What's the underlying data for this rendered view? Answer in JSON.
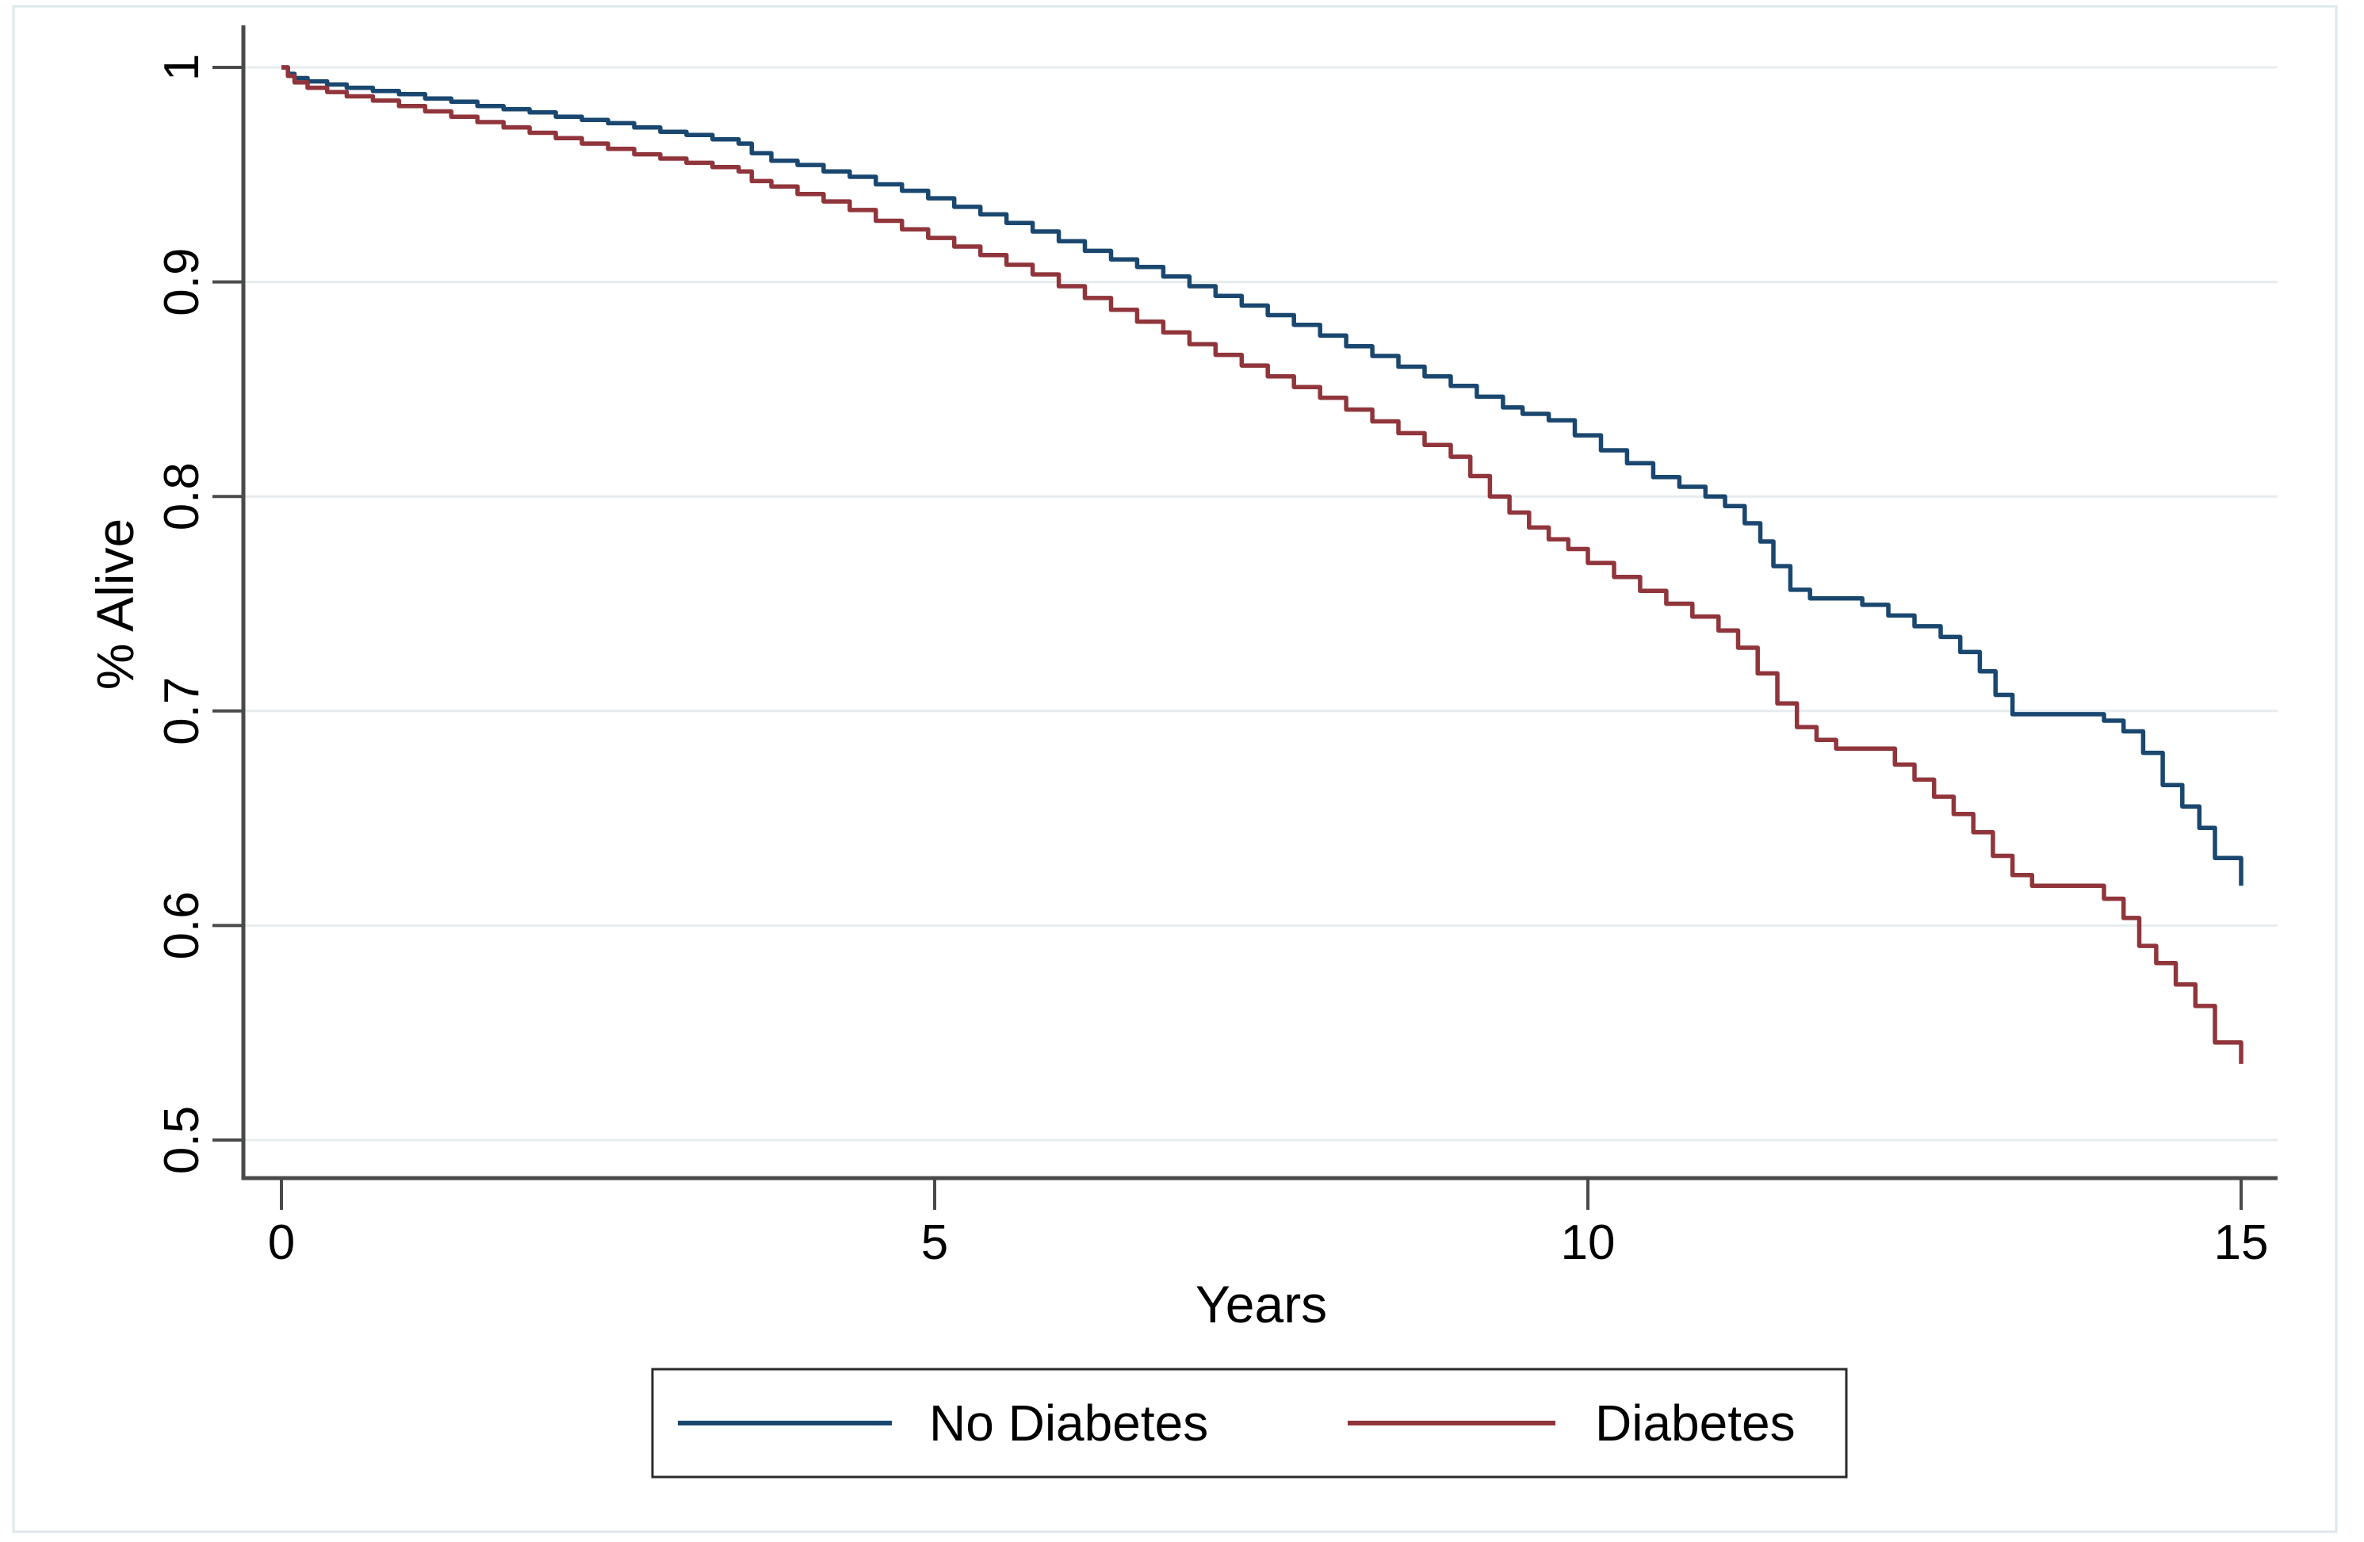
{
  "figure": {
    "background_color": "#ffffff",
    "outer_frame_color": "#dce8eb"
  },
  "legend": {
    "border_color": "#2b2b2b",
    "background_color": "#ffffff",
    "items": [
      {
        "label": "No Diabetes",
        "color": "#1a476f"
      },
      {
        "label": "Diabetes",
        "color": "#90353b"
      }
    ]
  },
  "chart_data": {
    "type": "line",
    "subtype": "kaplan-meier-survival-step",
    "title": "",
    "xlabel": "Years",
    "ylabel": "% Alive",
    "xlim": [
      0,
      15
    ],
    "ylim": [
      0.5,
      1.0
    ],
    "x_ticks": [
      0,
      5,
      10,
      15
    ],
    "x_tick_labels": [
      "0",
      "5",
      "10",
      "15"
    ],
    "y_ticks": [
      1,
      0.9,
      0.8,
      0.7,
      0.6,
      0.5
    ],
    "y_tick_labels": [
      "1",
      "0.9",
      "0.8",
      "0.7",
      "0.6",
      "0.5"
    ],
    "grid": "horizontal",
    "gridline_color": "#e6ecee",
    "axis_color": "#4a4a4a",
    "text_color": "#000000",
    "legend_position": "bottom-center",
    "series": [
      {
        "name": "No Diabetes",
        "color": "#1a476f",
        "points": [
          [
            0,
            1
          ],
          [
            0.05,
            0.997
          ],
          [
            0.1,
            0.995
          ],
          [
            0.2,
            0.9935
          ],
          [
            0.35,
            0.992
          ],
          [
            0.5,
            0.9905
          ],
          [
            0.7,
            0.989
          ],
          [
            0.9,
            0.9875
          ],
          [
            1.1,
            0.9855
          ],
          [
            1.3,
            0.984
          ],
          [
            1.5,
            0.982
          ],
          [
            1.7,
            0.9805
          ],
          [
            1.9,
            0.979
          ],
          [
            2.1,
            0.977
          ],
          [
            2.3,
            0.9755
          ],
          [
            2.5,
            0.974
          ],
          [
            2.7,
            0.972
          ],
          [
            2.9,
            0.97
          ],
          [
            3.1,
            0.9685
          ],
          [
            3.3,
            0.9665
          ],
          [
            3.5,
            0.9645
          ],
          [
            3.6,
            0.96
          ],
          [
            3.75,
            0.9565
          ],
          [
            3.95,
            0.9545
          ],
          [
            4.15,
            0.9515
          ],
          [
            4.35,
            0.949
          ],
          [
            4.55,
            0.9455
          ],
          [
            4.75,
            0.9425
          ],
          [
            4.95,
            0.939
          ],
          [
            5.15,
            0.935
          ],
          [
            5.35,
            0.9315
          ],
          [
            5.55,
            0.9275
          ],
          [
            5.75,
            0.9235
          ],
          [
            5.95,
            0.919
          ],
          [
            6.15,
            0.9145
          ],
          [
            6.35,
            0.9105
          ],
          [
            6.55,
            0.907
          ],
          [
            6.75,
            0.9025
          ],
          [
            6.95,
            0.898
          ],
          [
            7.15,
            0.8935
          ],
          [
            7.35,
            0.889
          ],
          [
            7.55,
            0.8845
          ],
          [
            7.75,
            0.88
          ],
          [
            7.95,
            0.875
          ],
          [
            8.15,
            0.87
          ],
          [
            8.35,
            0.8655
          ],
          [
            8.55,
            0.8605
          ],
          [
            8.75,
            0.856
          ],
          [
            8.95,
            0.8515
          ],
          [
            9.15,
            0.8465
          ],
          [
            9.35,
            0.8415
          ],
          [
            9.5,
            0.8385
          ],
          [
            9.7,
            0.8355
          ],
          [
            9.9,
            0.8285
          ],
          [
            10.1,
            0.8215
          ],
          [
            10.3,
            0.8155
          ],
          [
            10.5,
            0.809
          ],
          [
            10.7,
            0.8045
          ],
          [
            10.9,
            0.8
          ],
          [
            11.05,
            0.7955
          ],
          [
            11.2,
            0.7875
          ],
          [
            11.32,
            0.779
          ],
          [
            11.42,
            0.7675
          ],
          [
            11.55,
            0.7565
          ],
          [
            11.7,
            0.7525
          ],
          [
            12.1,
            0.7495
          ],
          [
            12.3,
            0.7445
          ],
          [
            12.5,
            0.7395
          ],
          [
            12.7,
            0.7345
          ],
          [
            12.85,
            0.7275
          ],
          [
            13,
            0.7185
          ],
          [
            13.12,
            0.7075
          ],
          [
            13.25,
            0.6985
          ],
          [
            13.95,
            0.6955
          ],
          [
            14.1,
            0.6905
          ],
          [
            14.25,
            0.6805
          ],
          [
            14.4,
            0.6655
          ],
          [
            14.55,
            0.6555
          ],
          [
            14.68,
            0.6455
          ],
          [
            14.8,
            0.6315
          ],
          [
            15,
            0.6185
          ]
        ]
      },
      {
        "name": "Diabetes",
        "color": "#90353b",
        "points": [
          [
            0,
            1
          ],
          [
            0.05,
            0.996
          ],
          [
            0.1,
            0.993
          ],
          [
            0.2,
            0.9905
          ],
          [
            0.35,
            0.9885
          ],
          [
            0.5,
            0.9865
          ],
          [
            0.7,
            0.9845
          ],
          [
            0.9,
            0.982
          ],
          [
            1.1,
            0.9795
          ],
          [
            1.3,
            0.977
          ],
          [
            1.5,
            0.9745
          ],
          [
            1.7,
            0.972
          ],
          [
            1.9,
            0.9695
          ],
          [
            2.1,
            0.967
          ],
          [
            2.3,
            0.9645
          ],
          [
            2.5,
            0.962
          ],
          [
            2.7,
            0.9595
          ],
          [
            2.9,
            0.9575
          ],
          [
            3.1,
            0.9555
          ],
          [
            3.3,
            0.9535
          ],
          [
            3.5,
            0.9515
          ],
          [
            3.6,
            0.947
          ],
          [
            3.75,
            0.9445
          ],
          [
            3.95,
            0.941
          ],
          [
            4.15,
            0.9375
          ],
          [
            4.35,
            0.9335
          ],
          [
            4.55,
            0.9285
          ],
          [
            4.75,
            0.9245
          ],
          [
            4.95,
            0.9205
          ],
          [
            5.15,
            0.9165
          ],
          [
            5.35,
            0.9125
          ],
          [
            5.55,
            0.908
          ],
          [
            5.75,
            0.9035
          ],
          [
            5.95,
            0.898
          ],
          [
            6.15,
            0.8925
          ],
          [
            6.35,
            0.887
          ],
          [
            6.55,
            0.8815
          ],
          [
            6.75,
            0.8765
          ],
          [
            6.95,
            0.871
          ],
          [
            7.15,
            0.866
          ],
          [
            7.35,
            0.861
          ],
          [
            7.55,
            0.856
          ],
          [
            7.75,
            0.851
          ],
          [
            7.95,
            0.846
          ],
          [
            8.15,
            0.8405
          ],
          [
            8.35,
            0.835
          ],
          [
            8.55,
            0.8295
          ],
          [
            8.75,
            0.824
          ],
          [
            8.95,
            0.8185
          ],
          [
            9.1,
            0.8095
          ],
          [
            9.25,
            0.8
          ],
          [
            9.4,
            0.7925
          ],
          [
            9.55,
            0.7855
          ],
          [
            9.7,
            0.78
          ],
          [
            9.85,
            0.7755
          ],
          [
            10,
            0.769
          ],
          [
            10.2,
            0.7625
          ],
          [
            10.4,
            0.756
          ],
          [
            10.6,
            0.75
          ],
          [
            10.8,
            0.744
          ],
          [
            11,
            0.7375
          ],
          [
            11.15,
            0.7295
          ],
          [
            11.3,
            0.7175
          ],
          [
            11.45,
            0.7035
          ],
          [
            11.6,
            0.6925
          ],
          [
            11.75,
            0.6865
          ],
          [
            11.9,
            0.6825
          ],
          [
            12.35,
            0.675
          ],
          [
            12.5,
            0.668
          ],
          [
            12.65,
            0.66
          ],
          [
            12.8,
            0.652
          ],
          [
            12.95,
            0.6435
          ],
          [
            13.1,
            0.6325
          ],
          [
            13.25,
            0.6235
          ],
          [
            13.4,
            0.6185
          ],
          [
            13.95,
            0.6125
          ],
          [
            14.1,
            0.6035
          ],
          [
            14.22,
            0.5905
          ],
          [
            14.35,
            0.5825
          ],
          [
            14.5,
            0.5725
          ],
          [
            14.65,
            0.5625
          ],
          [
            14.8,
            0.5455
          ],
          [
            15,
            0.5355
          ]
        ]
      }
    ]
  }
}
